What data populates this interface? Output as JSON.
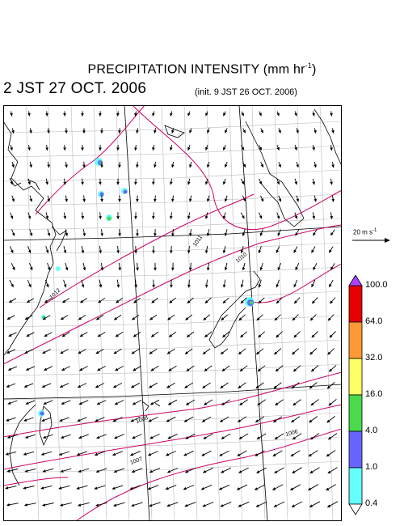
{
  "header": {
    "title": "PRECIPITATION INTENSITY (mm hr",
    "title_exp": "-1",
    "title_end": ")",
    "valid_time": "2 JST 27 OCT. 2006",
    "init_time": "(init. 9 JST 26 OCT. 2006)"
  },
  "wind_ref": {
    "label": "20 m s",
    "exp": "-1"
  },
  "colorbar": {
    "levels": [
      "100.0",
      "64.0",
      "32.0",
      "16.0",
      "4.0",
      "1.0",
      "0.4"
    ],
    "colors": [
      "#e60000",
      "#ff9933",
      "#ffff66",
      "#4cd94c",
      "#6666ff",
      "#66ffff"
    ],
    "top_arrow_color": "#b040ff",
    "bottom_arrow_color": "#ffffff"
  },
  "isobar_labels": [
    {
      "text": "1011",
      "angle": -55
    },
    {
      "text": "1010",
      "angle": -40
    },
    {
      "text": "1012",
      "angle": -45
    },
    {
      "text": "1008",
      "angle": -20
    },
    {
      "text": "1007",
      "angle": -20
    },
    {
      "text": "1006",
      "angle": -15
    }
  ],
  "colors": {
    "isobar": "#cc0066",
    "frame": "#000000"
  }
}
